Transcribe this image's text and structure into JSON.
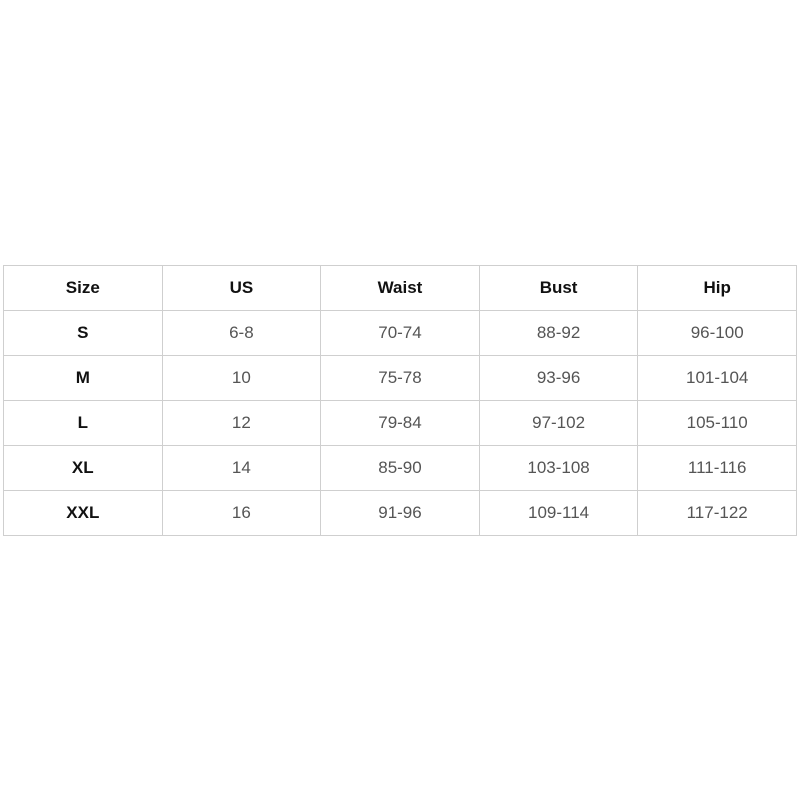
{
  "table": {
    "header": [
      "Size",
      "US",
      "Waist",
      "Bust",
      "Hip"
    ],
    "rows": [
      [
        "S",
        "6-8",
        "70-74",
        "88-92",
        "96-100"
      ],
      [
        "M",
        "10",
        "75-78",
        "93-96",
        "101-104"
      ],
      [
        "L",
        "12",
        "79-84",
        "97-102",
        "105-110"
      ],
      [
        "XL",
        "14",
        "85-90",
        "103-108",
        "111-116"
      ],
      [
        "XXL",
        "16",
        "91-96",
        "109-114",
        "117-122"
      ]
    ]
  }
}
